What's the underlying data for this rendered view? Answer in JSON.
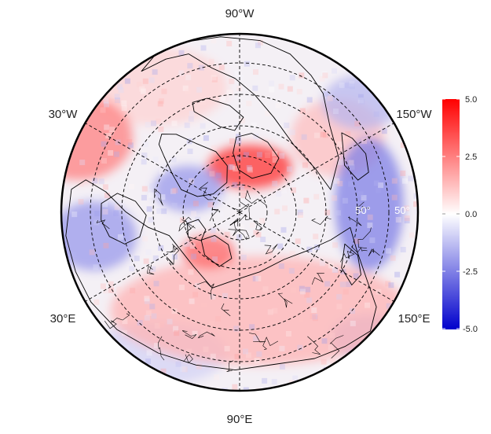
{
  "map": {
    "projection": "north-polar-stereographic",
    "longitude_labels": [
      "90°W",
      "30°W",
      "150°W",
      "30°E",
      "150°E",
      "90°E"
    ],
    "latitude_labels": [
      "50°",
      "50°"
    ],
    "graticule": "dashed"
  },
  "colorbar": {
    "ticks": [
      "5.0",
      "2.5",
      "0.0",
      "-2.5",
      "-5.0"
    ],
    "min": -5.0,
    "max": 5.0,
    "colors": {
      "high": "#ff0000",
      "mid": "#ffffff",
      "low": "#0000cc"
    }
  },
  "field_features": [
    {
      "desc": "strong positive over Canadian Arctic archipelago",
      "value": 4.0
    },
    {
      "desc": "positive over North Atlantic",
      "value": 2.5
    },
    {
      "desc": "positive over Siberia / Eurasia",
      "value": 1.5
    },
    {
      "desc": "negative over North Pacific",
      "value": -2.5
    },
    {
      "desc": "negative over Greenland interior",
      "value": -2.0
    },
    {
      "desc": "negative over Europe",
      "value": -2.0
    },
    {
      "desc": "positive over Barents / Kara Sea",
      "value": 3.0
    }
  ]
}
